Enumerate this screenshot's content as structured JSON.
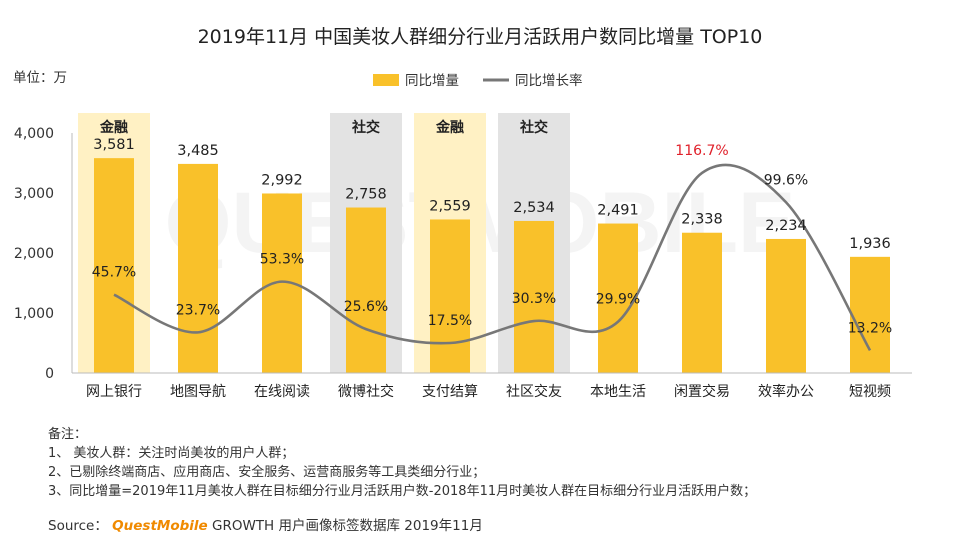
{
  "chart_data": {
    "type": "bar",
    "title": "2019年11月 中国美妆人群细分行业月活跃用户数同比增量 TOP10",
    "unit_label": "单位：万",
    "categories": [
      "网上银行",
      "地图导航",
      "在线阅读",
      "微博社交",
      "支付结算",
      "社区交友",
      "本地生活",
      "闲置交易",
      "效率办公",
      "短视频"
    ],
    "series": [
      {
        "name": "同比增量",
        "type": "bar",
        "color": "#f9c12a",
        "values": [
          3581,
          3485,
          2992,
          2758,
          2559,
          2534,
          2491,
          2338,
          2234,
          1936
        ],
        "labels": [
          "3,581",
          "3,485",
          "2,992",
          "2,758",
          "2,559",
          "2,534",
          "2,491",
          "2,338",
          "2,234",
          "1,936"
        ]
      },
      {
        "name": "同比增长率",
        "type": "line",
        "color": "#777777",
        "values": [
          45.7,
          23.7,
          53.3,
          25.6,
          17.5,
          30.3,
          29.9,
          116.7,
          99.6,
          13.2
        ],
        "labels": [
          "45.7%",
          "23.7%",
          "53.3%",
          "25.6%",
          "17.5%",
          "30.3%",
          "29.9%",
          "116.7%",
          "99.6%",
          "13.2%"
        ],
        "highlight_index": 7,
        "highlight_color": "#e0202a"
      }
    ],
    "ylim": [
      0,
      4000
    ],
    "y_ticks": [
      0,
      1000,
      2000,
      3000,
      4000
    ],
    "y_tick_labels": [
      "0",
      "1,000",
      "2,000",
      "3,000",
      "4,000"
    ],
    "y2lim": [
      0,
      140
    ],
    "category_bands": [
      {
        "index": 0,
        "label": "金融",
        "color": "#fff1c4"
      },
      {
        "index": 3,
        "label": "社交",
        "color": "#e3e3e3"
      },
      {
        "index": 4,
        "label": "金融",
        "color": "#fff1c4"
      },
      {
        "index": 5,
        "label": "社交",
        "color": "#e3e3e3"
      }
    ],
    "legend_position": "top-center",
    "grid": false
  },
  "watermark": "QUESTMOBILE",
  "notes": {
    "heading": "备注：",
    "items": [
      "1、 美妆人群：关注时尚美妆的用户人群；",
      "2、已剔除终端商店、应用商店、安全服务、运营商服务等工具类细分行业；",
      "3、同比增量=2019年11月美妆人群在目标细分行业月活跃用户数-2018年11月时美妆人群在目标细分行业月活跃用户数；"
    ]
  },
  "source": {
    "label": "Source：",
    "brand": "QuestMobile",
    "text": "GROWTH 用户画像标签数据库  2019年11月"
  }
}
